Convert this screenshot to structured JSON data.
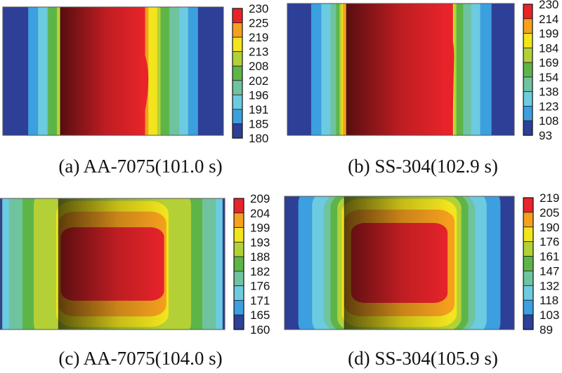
{
  "chart_data": [
    {
      "type": "heatmap",
      "style": "contour",
      "title": "(a) AA-7075 (101.0 s)",
      "caption": "(a) AA-7075(101.0 s)",
      "colorbar_levels": [
        230,
        225,
        219,
        213,
        208,
        202,
        196,
        191,
        185,
        180
      ],
      "pattern": "vertical bands, hot core bulging in the middle"
    },
    {
      "type": "heatmap",
      "style": "contour",
      "title": "(b) SS-304 (102.9 s)",
      "caption": "(b) SS-304(102.9 s)",
      "colorbar_levels": [
        230,
        214,
        199,
        184,
        169,
        154,
        138,
        123,
        108,
        93
      ],
      "pattern": "vertical bands, hot core starting at the bottom"
    },
    {
      "type": "heatmap",
      "style": "contour",
      "title": "(c) AA-7075 (104.0 s)",
      "caption": "(c) AA-7075(104.0 s)",
      "colorbar_levels": [
        209,
        204,
        199,
        193,
        188,
        182,
        176,
        171,
        165,
        160
      ],
      "pattern": "nested rounded rectangular contours"
    },
    {
      "type": "heatmap",
      "style": "contour",
      "title": "(d) SS-304 (105.9 s)",
      "caption": "(d) SS-304(105.9 s)",
      "colorbar_levels": [
        219,
        205,
        190,
        176,
        161,
        147,
        132,
        118,
        103,
        89
      ],
      "pattern": "nested rounded rectangular contours"
    }
  ],
  "colormap": [
    "#e8242a",
    "#f5a01e",
    "#f2e41d",
    "#b3d136",
    "#5db548",
    "#6fc39f",
    "#6ccbe0",
    "#3b9fe0",
    "#2d3f97"
  ]
}
